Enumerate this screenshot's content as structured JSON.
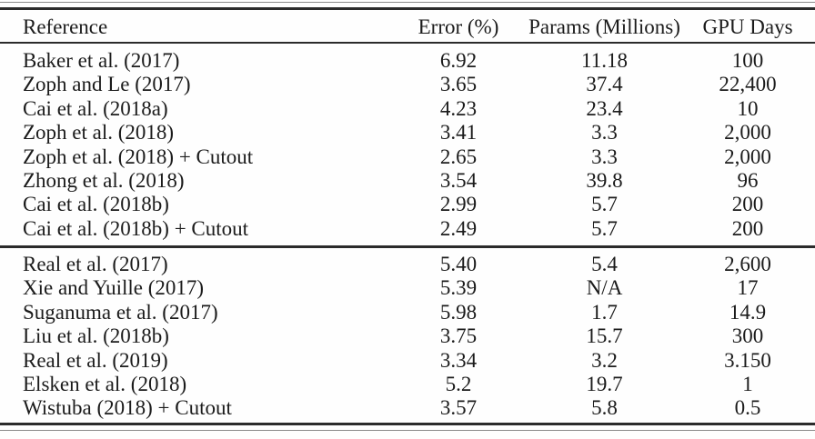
{
  "colors": {
    "text": "#1b1b1b",
    "rule_dark": "#2b2b2b",
    "rule_light": "#8a8a8a",
    "background": "#fefefe"
  },
  "table": {
    "columns": [
      "Reference",
      "Error (%)",
      "Params (Millions)",
      "GPU Days"
    ],
    "groups": [
      {
        "rows": [
          {
            "reference": "Baker et al. (2017)",
            "error": "6.92",
            "params": "11.18",
            "gpu_days": "100"
          },
          {
            "reference": "Zoph and Le (2017)",
            "error": "3.65",
            "params": "37.4",
            "gpu_days": "22,400"
          },
          {
            "reference": "Cai et al. (2018a)",
            "error": "4.23",
            "params": "23.4",
            "gpu_days": "10"
          },
          {
            "reference": "Zoph et al. (2018)",
            "error": "3.41",
            "params": "3.3",
            "gpu_days": "2,000"
          },
          {
            "reference": "Zoph et al. (2018) + Cutout",
            "error": "2.65",
            "params": "3.3",
            "gpu_days": "2,000"
          },
          {
            "reference": "Zhong et al. (2018)",
            "error": "3.54",
            "params": "39.8",
            "gpu_days": "96"
          },
          {
            "reference": "Cai et al. (2018b)",
            "error": "2.99",
            "params": "5.7",
            "gpu_days": "200"
          },
          {
            "reference": "Cai et al. (2018b) + Cutout",
            "error": "2.49",
            "params": "5.7",
            "gpu_days": "200"
          }
        ]
      },
      {
        "rows": [
          {
            "reference": "Real et al. (2017)",
            "error": "5.40",
            "params": "5.4",
            "gpu_days": "2,600"
          },
          {
            "reference": "Xie and Yuille (2017)",
            "error": "5.39",
            "params": "N/A",
            "gpu_days": "17"
          },
          {
            "reference": "Suganuma et al. (2017)",
            "error": "5.98",
            "params": "1.7",
            "gpu_days": "14.9"
          },
          {
            "reference": "Liu et al. (2018b)",
            "error": "3.75",
            "params": "15.7",
            "gpu_days": "300"
          },
          {
            "reference": "Real et al. (2019)",
            "error": "3.34",
            "params": "3.2",
            "gpu_days": "3.150"
          },
          {
            "reference": "Elsken et al. (2018)",
            "error": "5.2",
            "params": "19.7",
            "gpu_days": "1"
          },
          {
            "reference": "Wistuba (2018) + Cutout",
            "error": "3.57",
            "params": "5.8",
            "gpu_days": "0.5"
          }
        ]
      }
    ]
  }
}
